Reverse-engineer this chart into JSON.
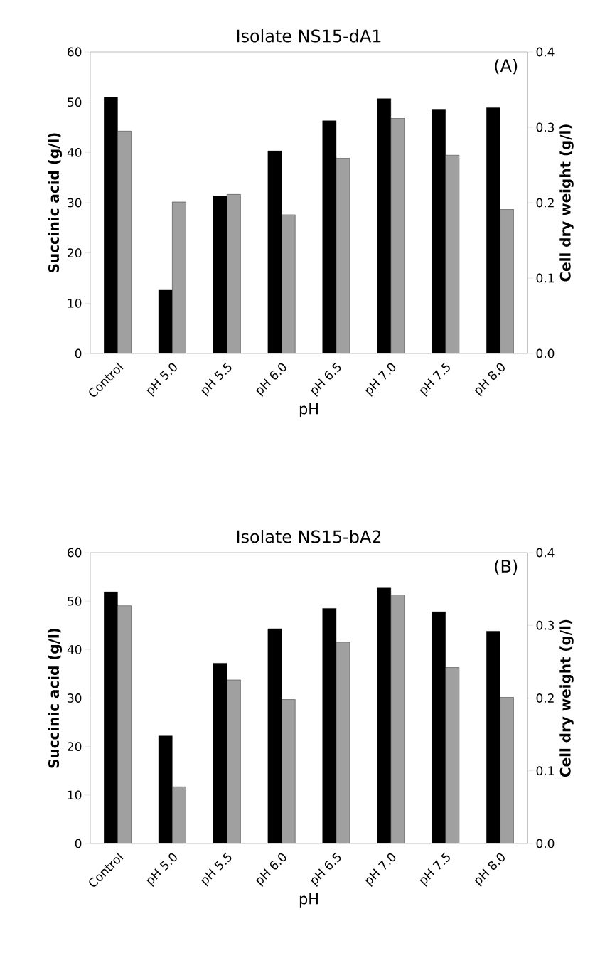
{
  "chart_data": [
    {
      "type": "bar",
      "title": "Isolate NS15-dA1",
      "xlabel": "pH",
      "ylabel": "Succinic acid (g/l)",
      "y2label": "Cell dry weight (g/l)",
      "annotations": [
        "(A)"
      ],
      "categories": [
        "Control",
        "pH 5.0",
        "pH 5.5",
        "pH 6.0",
        "pH 6.5",
        "pH 7.0",
        "pH 7.5",
        "pH 8.0"
      ],
      "series": [
        {
          "color": "#000000",
          "values": [
            51.0,
            12.6,
            31.3,
            40.3,
            46.3,
            50.7,
            48.6,
            48.9
          ]
        },
        {
          "color": "#a0a0a0",
          "axis": "y2",
          "values": [
            0.295,
            0.201,
            0.211,
            0.184,
            0.259,
            0.312,
            0.263,
            0.191
          ]
        }
      ],
      "ylim": [
        0,
        60
      ],
      "yticks": [
        0,
        10,
        20,
        30,
        40,
        50,
        60
      ],
      "y2lim": [
        0,
        0.4
      ],
      "y2ticks": [
        {
          "value": 0,
          "label": "0.0"
        },
        {
          "value": 0.1,
          "label": "0.1"
        },
        {
          "value": 0.2,
          "label": "0.2"
        },
        {
          "value": 0.3,
          "label": "0.3"
        },
        {
          "value": 0.4,
          "label": "0.4"
        }
      ]
    },
    {
      "type": "bar",
      "title": "Isolate NS15-bA2",
      "xlabel": "pH",
      "ylabel": "Succinic acid (g/l)",
      "y2label": "Cell dry weight (g/l)",
      "annotations": [
        "(B)"
      ],
      "categories": [
        "Control",
        "pH 5.0",
        "pH 5.5",
        "pH 6.0",
        "pH 6.5",
        "pH 7.0",
        "pH 7.5",
        "pH 8.0"
      ],
      "series": [
        {
          "color": "#000000",
          "values": [
            51.9,
            22.2,
            37.2,
            44.3,
            48.5,
            52.7,
            47.8,
            43.8
          ]
        },
        {
          "color": "#a0a0a0",
          "axis": "y2",
          "values": [
            0.327,
            0.078,
            0.225,
            0.198,
            0.277,
            0.342,
            0.242,
            0.201
          ]
        }
      ],
      "ylim": [
        0,
        60
      ],
      "yticks": [
        0,
        10,
        20,
        30,
        40,
        50,
        60
      ],
      "y2lim": [
        0,
        0.4
      ],
      "y2ticks": [
        {
          "value": 0,
          "label": "0.0"
        },
        {
          "value": 0.1,
          "label": "0.1"
        },
        {
          "value": 0.2,
          "label": "0.2"
        },
        {
          "value": 0.3,
          "label": "0.3"
        },
        {
          "value": 0.4,
          "label": "0.4"
        }
      ]
    }
  ]
}
